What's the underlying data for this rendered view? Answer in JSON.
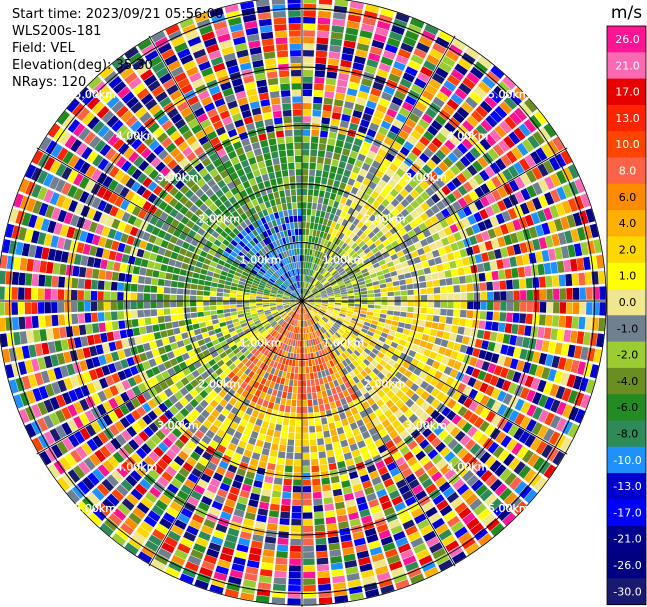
{
  "header": {
    "start_time": "Start time: 2023/09/21 05:56:00",
    "instrument": "WLS200s-181",
    "field": "Field: VEL",
    "elevation": "Elevation(deg): 35.30",
    "nrays": "NRays: 120"
  },
  "chart_data": {
    "type": "heatmap",
    "projection": "polar PPI scan",
    "field": "VEL",
    "units": "m/s",
    "range_ring_labels": [
      "1.00km",
      "2.00km",
      "3.00km",
      "4.00km",
      "5.00km"
    ],
    "range_rings_km": [
      1,
      2,
      3,
      4,
      5
    ],
    "max_range_km": 5.2,
    "n_rays": 120,
    "colorbar": {
      "units_label": "m/s",
      "ticks": [
        "26.0",
        "21.0",
        "17.0",
        "13.0",
        "10.0",
        "8.0",
        "6.0",
        "4.0",
        "2.0",
        "1.0",
        "0.0",
        "-1.0",
        "-2.0",
        "-4.0",
        "-6.0",
        "-8.0",
        "-10.0",
        "-13.0",
        "-17.0",
        "-21.0",
        "-26.0",
        "-30.0"
      ],
      "colors": [
        "#ff1493",
        "#ff69b4",
        "#e60000",
        "#ff2400",
        "#ff4500",
        "#ff6347",
        "#ff8c00",
        "#ffb000",
        "#ffd700",
        "#ffff00",
        "#f0e68c",
        "#708090",
        "#9acd32",
        "#6b8e23",
        "#228b22",
        "#2e8b57",
        "#1e90ff",
        "#0000cd",
        "#0000ff",
        "#00008b",
        "#000080",
        "#191970"
      ]
    },
    "pattern_summary": {
      "near_field_0_to_3km": "Negative velocities (blue/green) to the northwest, positive velocities (yellow/orange/red) to the south and southeast",
      "far_field_3_to_5km": "Noisy multicolored speckle beyond approximately 3 km"
    }
  }
}
